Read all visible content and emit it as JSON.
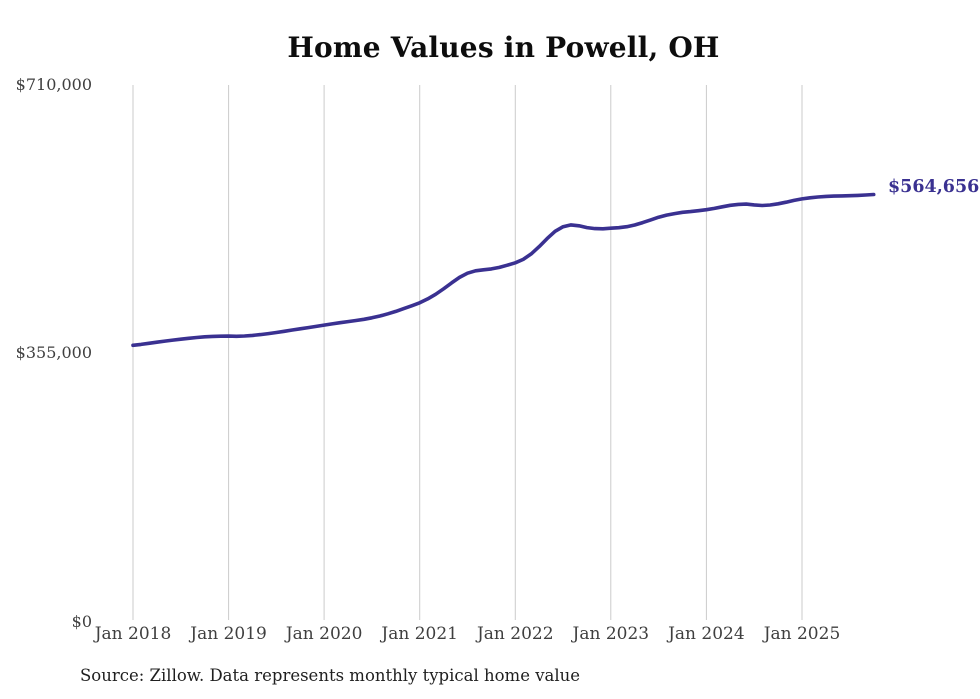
{
  "chart": {
    "title": "Home Values in Powell, OH",
    "end_label": "$564,656",
    "source": "Source: Zillow. Data represents monthly typical home value"
  },
  "colors": {
    "line": "#3a3191",
    "end_label": "#3a3191",
    "grid": "#cbcbcb",
    "axis_text": "#3f3f3f",
    "title_text": "#0d0d0d",
    "source_text": "#1f1f1f",
    "background": "#ffffff"
  },
  "chart_data": {
    "type": "line",
    "title": "Home Values in Powell, OH",
    "xlabel": "",
    "ylabel": "",
    "ylim": [
      0,
      710000
    ],
    "grid": "vertical-only",
    "legend": "none",
    "frequency": "monthly",
    "start_month": "Jan 2018",
    "end_month": "Oct 2025",
    "x_tick_labels": [
      "Jan 2018",
      "Jan 2019",
      "Jan 2020",
      "Jan 2021",
      "Jan 2022",
      "Jan 2023",
      "Jan 2024",
      "Jan 2025"
    ],
    "y_ticks": [
      {
        "label": "$0",
        "value": 0
      },
      {
        "label": "$355,000",
        "value": 355000
      },
      {
        "label": "$710,000",
        "value": 710000
      }
    ],
    "last_value": 564656,
    "last_value_label": "$564,656",
    "series": [
      {
        "name": "Typical home value",
        "values": [
          364500,
          365800,
          367200,
          368700,
          370100,
          371400,
          372600,
          373800,
          374900,
          375800,
          376400,
          376600,
          376700,
          376500,
          376900,
          377700,
          378800,
          380100,
          381600,
          383200,
          384800,
          386400,
          388000,
          389700,
          391300,
          392900,
          394500,
          396000,
          397500,
          399000,
          401000,
          403400,
          406300,
          409600,
          413200,
          417000,
          421000,
          426100,
          432300,
          439600,
          447400,
          454700,
          460300,
          463400,
          464700,
          465900,
          468000,
          470800,
          474000,
          478600,
          485800,
          495500,
          506200,
          515800,
          521900,
          524300,
          523200,
          520800,
          519400,
          519200,
          520000,
          520600,
          521900,
          524200,
          527400,
          531000,
          534500,
          537300,
          539400,
          541000,
          542000,
          543200,
          544500,
          546200,
          548300,
          550300,
          551600,
          551900,
          550900,
          550100,
          550700,
          552300,
          554500,
          556800,
          558800,
          560300,
          561400,
          562100,
          562500,
          562800,
          563100,
          563500,
          564000,
          564656
        ]
      }
    ],
    "source": "Source: Zillow. Data represents monthly typical home value"
  }
}
